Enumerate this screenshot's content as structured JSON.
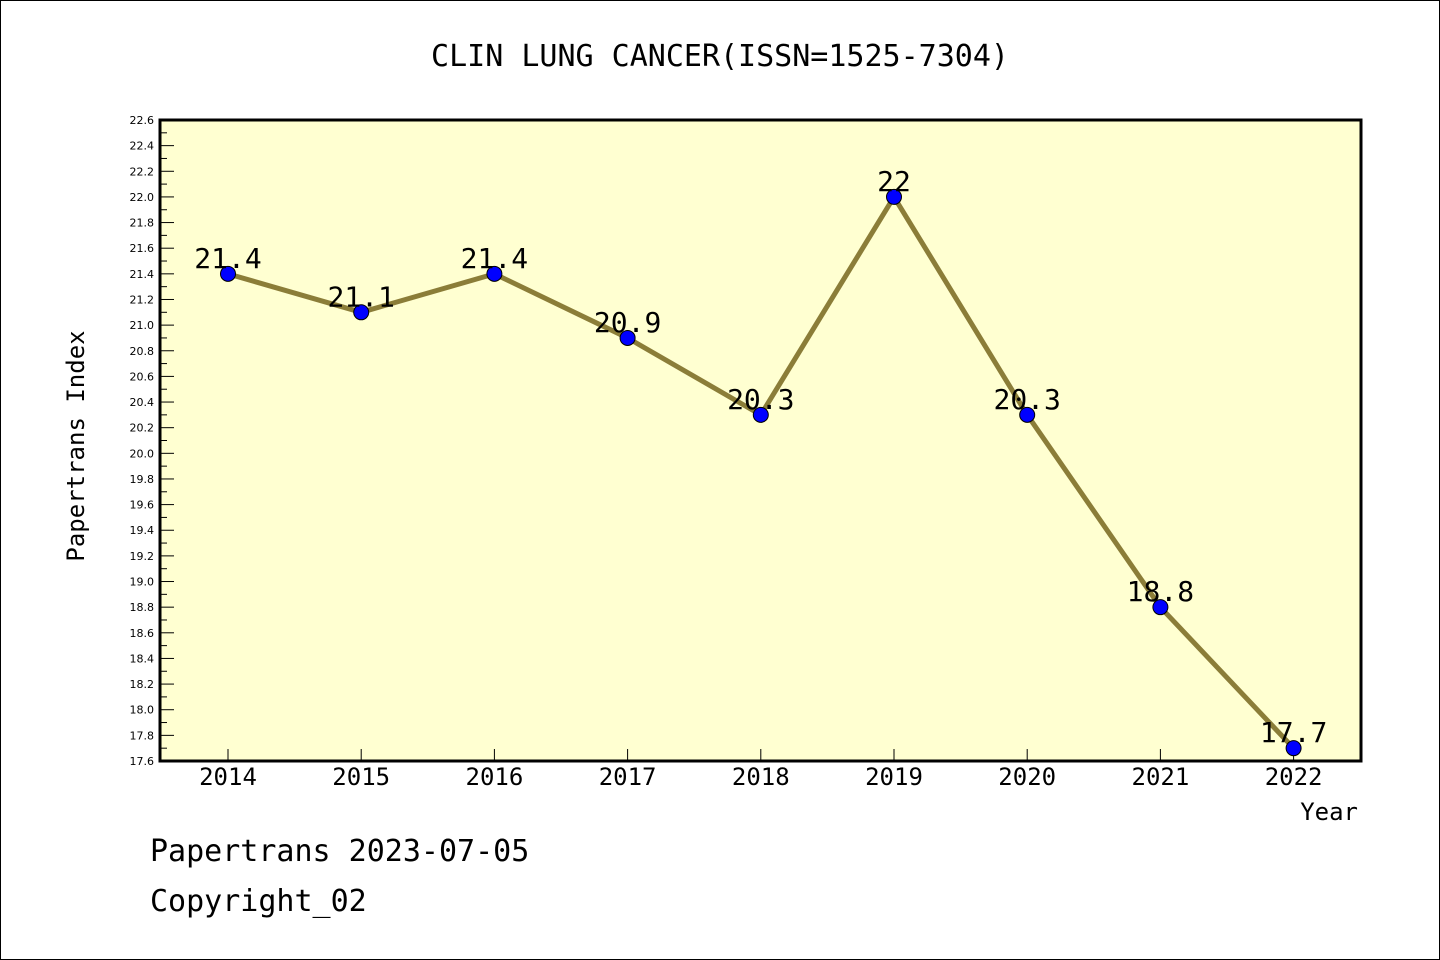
{
  "colors": {
    "plot_background": "#ffffd1",
    "line": "#8b7d38",
    "marker": "#0000ff",
    "axis": "#000000"
  },
  "footer": {
    "line1": "Papertrans 2023-07-05",
    "line2": "Copyright_02"
  },
  "chart_data": {
    "type": "line",
    "title": "CLIN LUNG CANCER(ISSN=1525-7304)",
    "xlabel": "Year",
    "ylabel": "Papertrans Index",
    "ylim": [
      17.6,
      22.6
    ],
    "ytick_step": 0.2,
    "grid": false,
    "categories": [
      "2014",
      "2015",
      "2016",
      "2017",
      "2018",
      "2019",
      "2020",
      "2021",
      "2022"
    ],
    "series": [
      {
        "values": [
          21.4,
          21.1,
          21.4,
          20.9,
          20.3,
          22.0,
          20.3,
          18.8,
          17.7
        ],
        "labels": [
          "21.4",
          "21.1",
          "21.4",
          "20.9",
          "20.3",
          "22",
          "20.3",
          "18.8",
          "17.7"
        ]
      }
    ]
  }
}
